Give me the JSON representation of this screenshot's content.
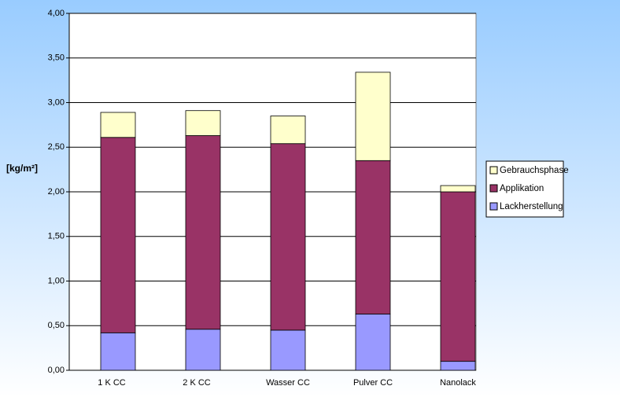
{
  "chart_data": {
    "type": "stacked_bar",
    "y_label": "[kg/m²]",
    "categories": [
      "1 K CC",
      "2 K CC",
      "Wasser CC",
      "Pulver CC",
      "Nanolack"
    ],
    "series": [
      {
        "name": "Lackherstellung",
        "color": "#9999ff",
        "values": [
          0.42,
          0.46,
          0.45,
          0.63,
          0.1
        ]
      },
      {
        "name": "Applikation",
        "color": "#993366",
        "values": [
          2.19,
          2.17,
          2.09,
          1.72,
          1.9
        ]
      },
      {
        "name": "Gebrauchsphase",
        "color": "#ffffcc",
        "values": [
          0.28,
          0.28,
          0.31,
          0.99,
          0.07
        ]
      }
    ],
    "ylim": [
      0,
      4
    ],
    "yticks": [
      {
        "value": 0,
        "label": "0,00"
      },
      {
        "value": 0.5,
        "label": "0,50"
      },
      {
        "value": 1,
        "label": "1,00"
      },
      {
        "value": 1.5,
        "label": "1,50"
      },
      {
        "value": 2,
        "label": "2,00"
      },
      {
        "value": 2.5,
        "label": "2,50"
      },
      {
        "value": 3,
        "label": "3,00"
      },
      {
        "value": 3.5,
        "label": "3,50"
      },
      {
        "value": 4,
        "label": "4,00"
      }
    ],
    "grid": true,
    "legend": "right"
  }
}
